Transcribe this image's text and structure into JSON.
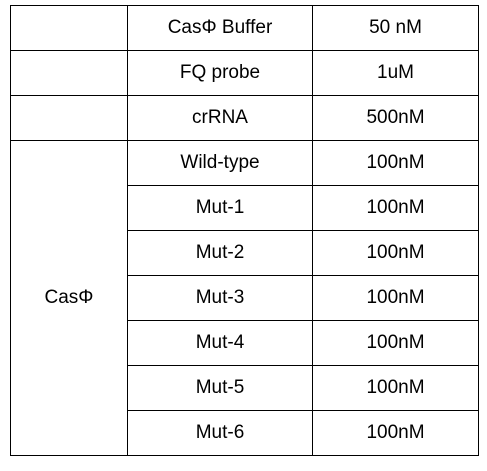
{
  "table": {
    "top_rows": [
      {
        "group": "",
        "item": "CasΦ Buffer",
        "conc": "50 nM"
      },
      {
        "group": "",
        "item": "FQ probe",
        "conc": "1uM"
      },
      {
        "group": "",
        "item": "crRNA",
        "conc": "500nM"
      }
    ],
    "group_label": "CasΦ",
    "group_rows": [
      {
        "item": "Wild-type",
        "conc": "100nM"
      },
      {
        "item": "Mut-1",
        "conc": "100nM"
      },
      {
        "item": "Mut-2",
        "conc": "100nM"
      },
      {
        "item": "Mut-3",
        "conc": "100nM"
      },
      {
        "item": "Mut-4",
        "conc": "100nM"
      },
      {
        "item": "Mut-5",
        "conc": "100nM"
      },
      {
        "item": "Mut-6",
        "conc": "100nM"
      }
    ]
  }
}
